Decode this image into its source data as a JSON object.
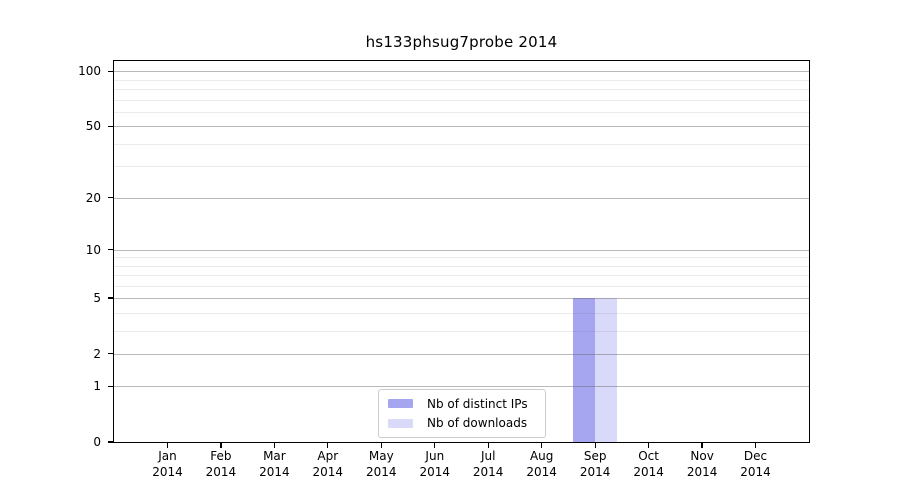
{
  "title": "hs133phsug7probe 2014",
  "chart_data": {
    "type": "bar",
    "title": "hs133phsug7probe 2014",
    "categories": [
      "Jan",
      "Feb",
      "Mar",
      "Apr",
      "May",
      "Jun",
      "Jul",
      "Aug",
      "Sep",
      "Oct",
      "Nov",
      "Dec"
    ],
    "year_label": "2014",
    "series": [
      {
        "name": "Nb of distinct IPs",
        "color": "#a5a5f0",
        "values": [
          0,
          0,
          0,
          0,
          0,
          0,
          0,
          0,
          5,
          0,
          0,
          0
        ]
      },
      {
        "name": "Nb of downloads",
        "color": "#d9d9fa",
        "values": [
          0,
          0,
          0,
          0,
          0,
          0,
          0,
          0,
          5,
          0,
          0,
          0
        ]
      }
    ],
    "y_scale": "log1p",
    "y_axis": {
      "major_ticks": [
        0,
        1,
        2,
        5,
        10,
        20,
        50,
        100
      ],
      "minor_gridlines": [
        3,
        4,
        6,
        7,
        8,
        9,
        30,
        40,
        60,
        70,
        80,
        90
      ],
      "ylim": [
        0,
        114
      ]
    },
    "x_axis": {
      "tick_label_format": "month over year"
    },
    "legend": {
      "position": "lower center",
      "entries": [
        "Nb of distinct IPs",
        "Nb of downloads"
      ]
    },
    "grid": true
  },
  "colors": {
    "bar_distinct_ips": "#a5a5f0",
    "bar_downloads": "#d9d9fa",
    "grid_major": "#bbbbbb",
    "grid_minor": "#ededed",
    "axis": "#000000",
    "legend_border": "#cccccc",
    "background": "#ffffff"
  }
}
